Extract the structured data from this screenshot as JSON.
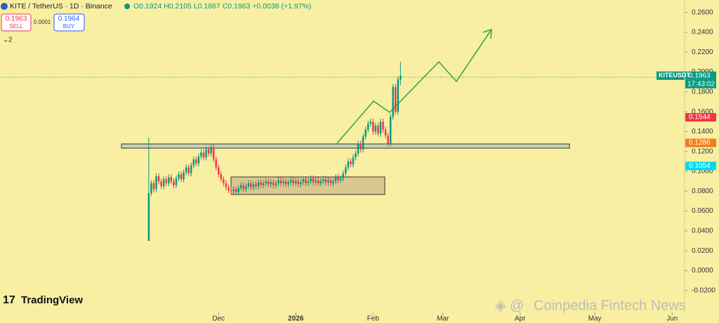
{
  "header": {
    "symbol": "KITE / TetherUS · 1D · Binance",
    "ohlc": "O0.1924 H0.2105 L0.1867 C0.1963 +0.0038 (+1.97%)",
    "sell_price": "0.1963",
    "sell": "SELL",
    "spread": "0.0001",
    "buy_price": "0.1964",
    "buy": "BUY",
    "indicators": "2"
  },
  "branding": {
    "logo": "TradingView",
    "watermark": "Coinpedia Fintech News"
  },
  "chart_data": {
    "type": "candlestick",
    "symbol_label": "KITEUSDT",
    "countdown": "17:43:02",
    "colors": {
      "up": "#089981",
      "down": "#f23645"
    },
    "xlim": [
      -59.7,
      215
    ],
    "xticks": [
      {
        "value": 28,
        "label": "Dec"
      },
      {
        "value": 59,
        "label": "2026"
      },
      {
        "value": 90,
        "label": "Feb"
      },
      {
        "value": 118,
        "label": "Mar"
      },
      {
        "value": 149,
        "label": "Apr"
      },
      {
        "value": 179,
        "label": "May"
      },
      {
        "value": 210,
        "label": "Jun"
      }
    ],
    "ylim": [
      -0.0315,
      0.2725
    ],
    "yticks": [
      {
        "value": -0.02,
        "label": "-0.0200"
      },
      {
        "value": 0,
        "label": "0.0000"
      },
      {
        "value": 0.02,
        "label": "0.0200"
      },
      {
        "value": 0.04,
        "label": "0.0400"
      },
      {
        "value": 0.06,
        "label": "0.0600"
      },
      {
        "value": 0.08,
        "label": "0.0800"
      },
      {
        "value": 0.1,
        "label": "0.1000"
      },
      {
        "value": 0.12,
        "label": "0.1200"
      },
      {
        "value": 0.14,
        "label": "0.1400"
      },
      {
        "value": 0.16,
        "label": "0.1600"
      },
      {
        "value": 0.18,
        "label": "0.1800"
      },
      {
        "value": 0.2,
        "label": "0.2000"
      },
      {
        "value": 0.22,
        "label": "0.2200"
      },
      {
        "value": 0.24,
        "label": "0.2400"
      },
      {
        "value": 0.26,
        "label": "0.2600"
      }
    ],
    "price_labels": [
      {
        "value": 0.1963,
        "color": "#089981"
      },
      {
        "value": 0.1544,
        "color": "#f23645"
      },
      {
        "value": 0.1286,
        "color": "#f57c1f"
      },
      {
        "value": 0.1054,
        "color": "#00d8f0"
      }
    ],
    "ohlc": [
      [
        0.03,
        0.134,
        0.03,
        0.078
      ],
      [
        0.078,
        0.091,
        0.075,
        0.088
      ],
      [
        0.088,
        0.091,
        0.079,
        0.082
      ],
      [
        0.082,
        0.098,
        0.079,
        0.095
      ],
      [
        0.095,
        0.098,
        0.087,
        0.09
      ],
      [
        0.09,
        0.093,
        0.082,
        0.085
      ],
      [
        0.085,
        0.095,
        0.082,
        0.092
      ],
      [
        0.092,
        0.095,
        0.085,
        0.088
      ],
      [
        0.088,
        0.097,
        0.085,
        0.094
      ],
      [
        0.094,
        0.097,
        0.087,
        0.09
      ],
      [
        0.09,
        0.093,
        0.083,
        0.086
      ],
      [
        0.086,
        0.096,
        0.083,
        0.093
      ],
      [
        0.093,
        0.1,
        0.09,
        0.097
      ],
      [
        0.097,
        0.1,
        0.089,
        0.092
      ],
      [
        0.092,
        0.102,
        0.089,
        0.099
      ],
      [
        0.099,
        0.107,
        0.096,
        0.104
      ],
      [
        0.104,
        0.107,
        0.095,
        0.098
      ],
      [
        0.098,
        0.109,
        0.095,
        0.106
      ],
      [
        0.106,
        0.115,
        0.103,
        0.112
      ],
      [
        0.112,
        0.115,
        0.105,
        0.108
      ],
      [
        0.108,
        0.118,
        0.105,
        0.115
      ],
      [
        0.115,
        0.122,
        0.112,
        0.119
      ],
      [
        0.119,
        0.122,
        0.111,
        0.114
      ],
      [
        0.114,
        0.125,
        0.111,
        0.122
      ],
      [
        0.122,
        0.125,
        0.115,
        0.118
      ],
      [
        0.118,
        0.127,
        0.115,
        0.124
      ],
      [
        0.124,
        0.127,
        0.109,
        0.112
      ],
      [
        0.112,
        0.115,
        0.101,
        0.104
      ],
      [
        0.104,
        0.107,
        0.094,
        0.097
      ],
      [
        0.097,
        0.1,
        0.089,
        0.092
      ],
      [
        0.092,
        0.095,
        0.085,
        0.088
      ],
      [
        0.088,
        0.091,
        0.081,
        0.084
      ],
      [
        0.084,
        0.087,
        0.078,
        0.081
      ],
      [
        0.081,
        0.084,
        0.077,
        0.08
      ],
      [
        0.08,
        0.085,
        0.077,
        0.082
      ],
      [
        0.082,
        0.085,
        0.076,
        0.079
      ],
      [
        0.079,
        0.086,
        0.076,
        0.083
      ],
      [
        0.083,
        0.089,
        0.08,
        0.086
      ],
      [
        0.086,
        0.089,
        0.079,
        0.082
      ],
      [
        0.082,
        0.088,
        0.079,
        0.085
      ],
      [
        0.085,
        0.091,
        0.082,
        0.088
      ],
      [
        0.088,
        0.091,
        0.081,
        0.084
      ],
      [
        0.084,
        0.09,
        0.081,
        0.087
      ],
      [
        0.087,
        0.09,
        0.082,
        0.085
      ],
      [
        0.085,
        0.092,
        0.082,
        0.089
      ],
      [
        0.089,
        0.092,
        0.083,
        0.086
      ],
      [
        0.086,
        0.091,
        0.083,
        0.088
      ],
      [
        0.088,
        0.093,
        0.085,
        0.09
      ],
      [
        0.09,
        0.093,
        0.084,
        0.087
      ],
      [
        0.087,
        0.092,
        0.084,
        0.089
      ],
      [
        0.089,
        0.092,
        0.083,
        0.086
      ],
      [
        0.086,
        0.091,
        0.083,
        0.088
      ],
      [
        0.088,
        0.094,
        0.085,
        0.091
      ],
      [
        0.091,
        0.094,
        0.085,
        0.088
      ],
      [
        0.088,
        0.093,
        0.085,
        0.09
      ],
      [
        0.09,
        0.093,
        0.084,
        0.087
      ],
      [
        0.087,
        0.092,
        0.084,
        0.089
      ],
      [
        0.089,
        0.094,
        0.086,
        0.091
      ],
      [
        0.091,
        0.094,
        0.085,
        0.088
      ],
      [
        0.088,
        0.093,
        0.085,
        0.09
      ],
      [
        0.09,
        0.093,
        0.084,
        0.087
      ],
      [
        0.087,
        0.092,
        0.084,
        0.089
      ],
      [
        0.089,
        0.095,
        0.086,
        0.092
      ],
      [
        0.092,
        0.095,
        0.085,
        0.088
      ],
      [
        0.088,
        0.093,
        0.085,
        0.09
      ],
      [
        0.09,
        0.096,
        0.087,
        0.093
      ],
      [
        0.093,
        0.096,
        0.086,
        0.089
      ],
      [
        0.089,
        0.094,
        0.086,
        0.091
      ],
      [
        0.091,
        0.094,
        0.085,
        0.088
      ],
      [
        0.088,
        0.093,
        0.085,
        0.09
      ],
      [
        0.09,
        0.095,
        0.087,
        0.092
      ],
      [
        0.092,
        0.095,
        0.086,
        0.089
      ],
      [
        0.089,
        0.094,
        0.086,
        0.091
      ],
      [
        0.091,
        0.094,
        0.085,
        0.088
      ],
      [
        0.088,
        0.093,
        0.085,
        0.09
      ],
      [
        0.09,
        0.097,
        0.087,
        0.094
      ],
      [
        0.094,
        0.097,
        0.088,
        0.091
      ],
      [
        0.091,
        0.096,
        0.088,
        0.093
      ],
      [
        0.093,
        0.101,
        0.09,
        0.098
      ],
      [
        0.098,
        0.107,
        0.095,
        0.104
      ],
      [
        0.104,
        0.113,
        0.101,
        0.11
      ],
      [
        0.11,
        0.113,
        0.104,
        0.107
      ],
      [
        0.107,
        0.117,
        0.104,
        0.114
      ],
      [
        0.114,
        0.121,
        0.111,
        0.118
      ],
      [
        0.118,
        0.131,
        0.115,
        0.128
      ],
      [
        0.128,
        0.131,
        0.119,
        0.122
      ],
      [
        0.122,
        0.138,
        0.119,
        0.135
      ],
      [
        0.135,
        0.145,
        0.132,
        0.142
      ],
      [
        0.142,
        0.151,
        0.139,
        0.148
      ],
      [
        0.148,
        0.153,
        0.145,
        0.15
      ],
      [
        0.15,
        0.153,
        0.137,
        0.14
      ],
      [
        0.14,
        0.149,
        0.137,
        0.146
      ],
      [
        0.146,
        0.149,
        0.135,
        0.138
      ],
      [
        0.138,
        0.153,
        0.135,
        0.15
      ],
      [
        0.15,
        0.153,
        0.139,
        0.142
      ],
      [
        0.142,
        0.145,
        0.133,
        0.136
      ],
      [
        0.136,
        0.139,
        0.125,
        0.128
      ],
      [
        0.128,
        0.158,
        0.125,
        0.155
      ],
      [
        0.155,
        0.188,
        0.152,
        0.185
      ],
      [
        0.185,
        0.188,
        0.157,
        0.16
      ],
      [
        0.16,
        0.1955,
        0.157,
        0.1925
      ],
      [
        0.1924,
        0.2105,
        0.1867,
        0.1963
      ]
    ]
  }
}
